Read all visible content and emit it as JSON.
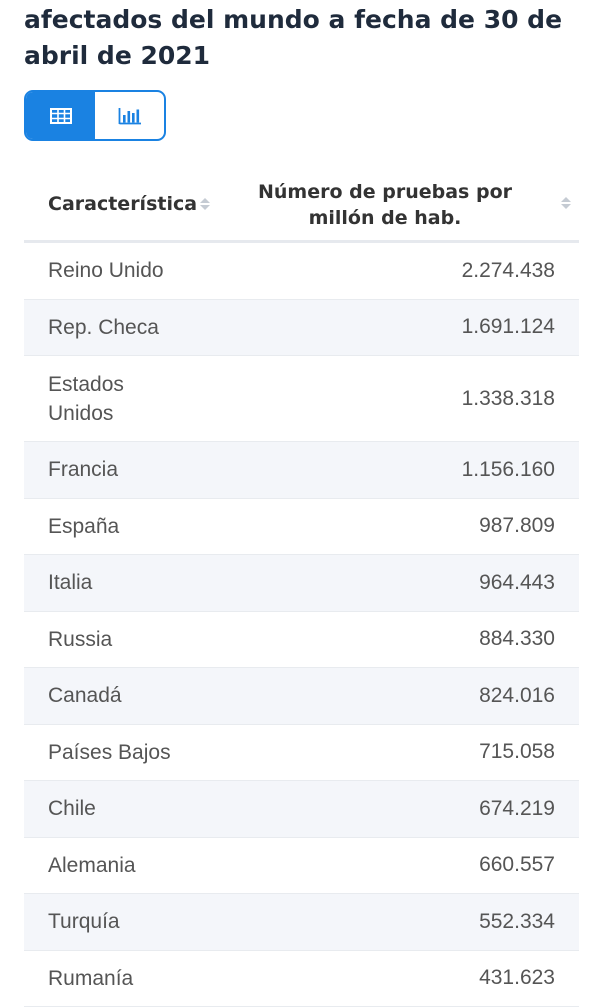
{
  "title": "afectados del mundo a fecha de 30 de abril de 2021",
  "view_toggle": {
    "table_icon": "table-grid-icon",
    "chart_icon": "bar-chart-icon",
    "active": "table",
    "accent_color": "#1a82e2"
  },
  "table": {
    "headers": {
      "characteristic": "Característica",
      "value": "Número de pruebas por millón de hab."
    },
    "rows": [
      {
        "name": "Reino Unido",
        "value": "2.274.438"
      },
      {
        "name": "Rep. Checa",
        "value": "1.691.124"
      },
      {
        "name": "Estados Unidos",
        "value": "1.338.318"
      },
      {
        "name": "Francia",
        "value": "1.156.160"
      },
      {
        "name": "España",
        "value": "987.809"
      },
      {
        "name": "Italia",
        "value": "964.443"
      },
      {
        "name": "Russia",
        "value": "884.330"
      },
      {
        "name": "Canadá",
        "value": "824.016"
      },
      {
        "name": "Países Bajos",
        "value": "715.058"
      },
      {
        "name": "Chile",
        "value": "674.219"
      },
      {
        "name": "Alemania",
        "value": "660.557"
      },
      {
        "name": "Turquía",
        "value": "552.334"
      },
      {
        "name": "Rumanía",
        "value": "431.623"
      }
    ]
  }
}
